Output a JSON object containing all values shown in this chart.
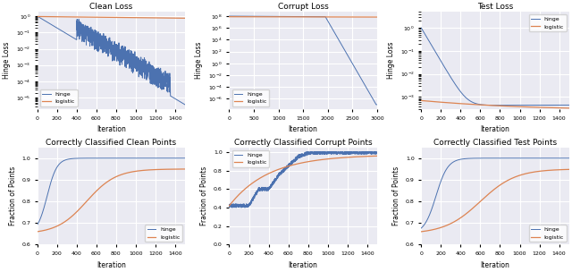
{
  "titles": [
    "Clean Loss",
    "Corrupt Loss",
    "Test Loss",
    "Correctly Classified Clean Points",
    "Correctly Classified Corrupt Points",
    "Correctly Classified Test Points"
  ],
  "xlabels": [
    "Iteration",
    "Iteration",
    "Iteration",
    "Iteration",
    "Iteration",
    "Iteration"
  ],
  "ylabels": [
    "Hinge Loss",
    "Hinge Loss",
    "Hinge Loss",
    "Fraction of Points",
    "Fraction of Points",
    "Fraction of Points"
  ],
  "hinge_color": "#4c72b0",
  "logistic_color": "#dd8452",
  "bg_color": "#eaeaf2",
  "grid_color": "white"
}
